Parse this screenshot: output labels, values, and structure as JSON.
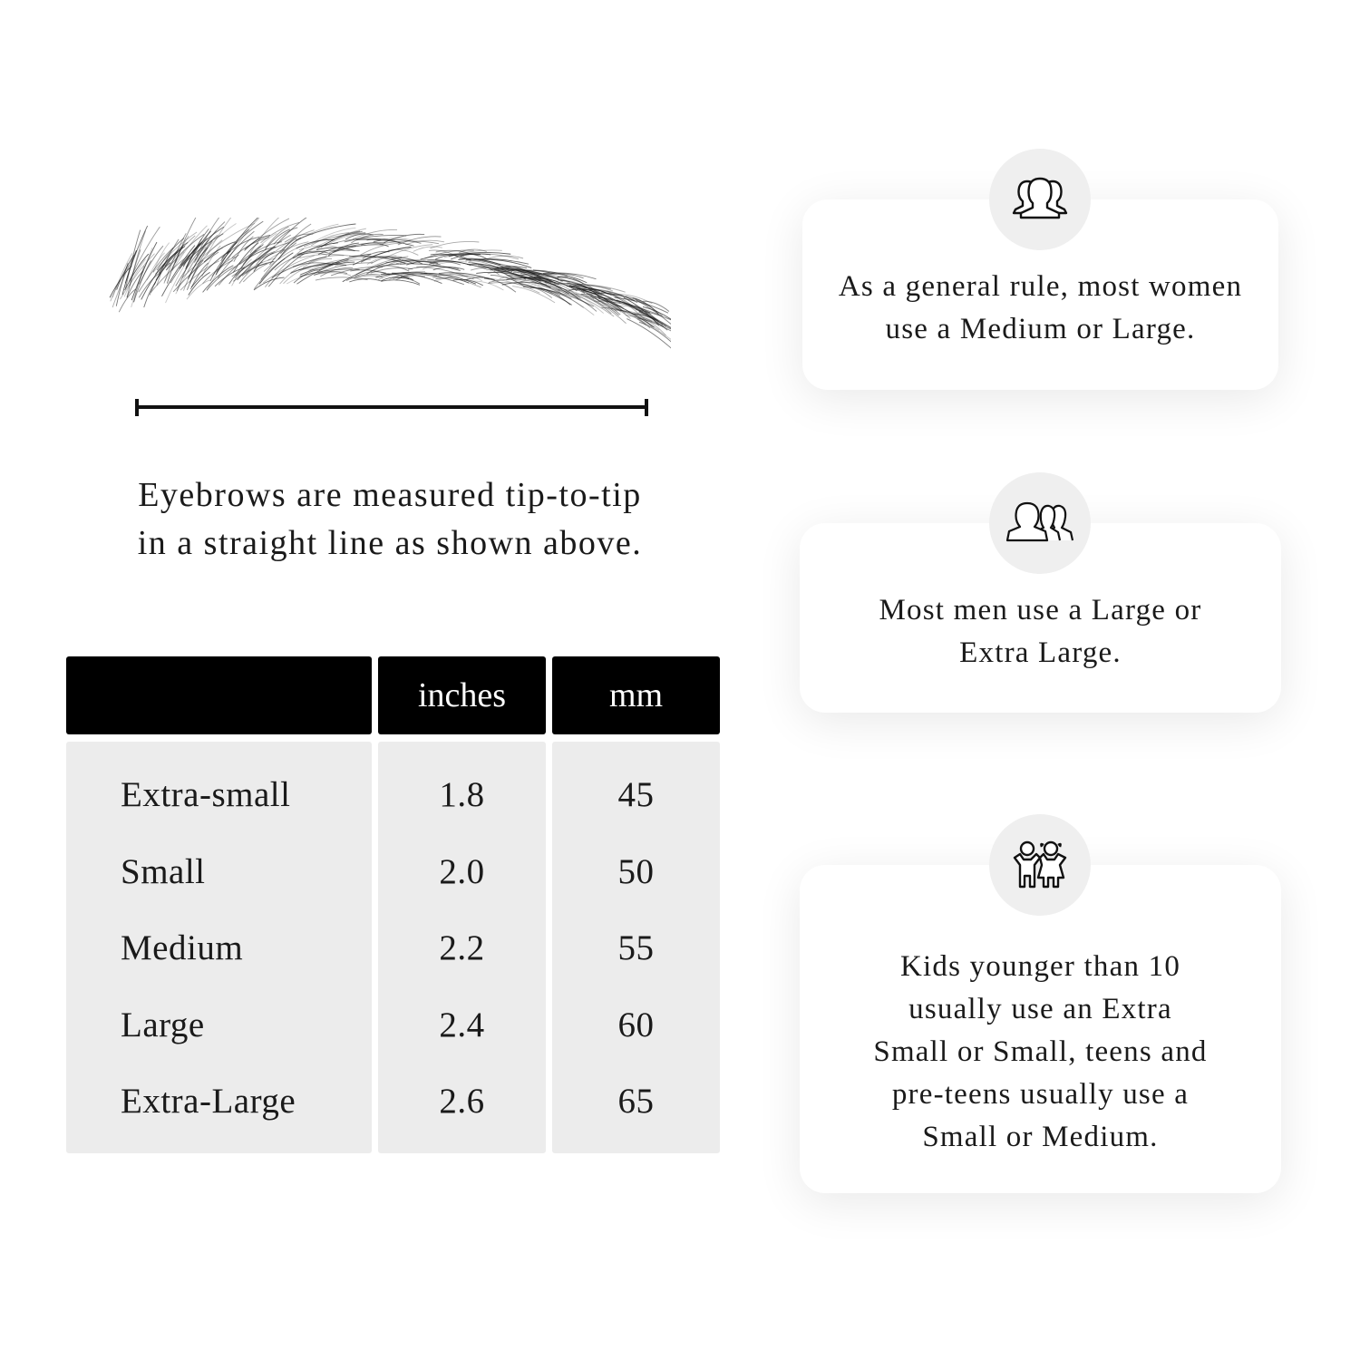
{
  "measurement": {
    "caption_line1": "Eyebrows are measured tip-to-tip",
    "caption_line2": "in a straight line as shown above."
  },
  "size_table": {
    "columns": [
      "",
      "inches",
      "mm"
    ],
    "rows": [
      {
        "size": "Extra-small",
        "inches": "1.8",
        "mm": "45"
      },
      {
        "size": "Small",
        "inches": "2.0",
        "mm": "50"
      },
      {
        "size": "Medium",
        "inches": "2.2",
        "mm": "55"
      },
      {
        "size": "Large",
        "inches": "2.4",
        "mm": "60"
      },
      {
        "size": "Extra-Large",
        "inches": "2.6",
        "mm": "65"
      }
    ]
  },
  "tips": [
    {
      "icon": "women-group-icon",
      "line1": "As a general rule, most women",
      "line2": "use a Medium or Large."
    },
    {
      "icon": "men-group-icon",
      "line1": "Most men use a Large or",
      "line2": "Extra Large."
    },
    {
      "icon": "kids-icon",
      "line1": "Kids younger than 10",
      "line2": "usually use an Extra",
      "line3": "Small or Small, teens and",
      "line4": "pre-teens usually use a",
      "line5": "Small or Medium."
    }
  ],
  "colors": {
    "header_bg": "#000000",
    "cell_bg": "#ececec",
    "icon_circle": "#efefef"
  }
}
